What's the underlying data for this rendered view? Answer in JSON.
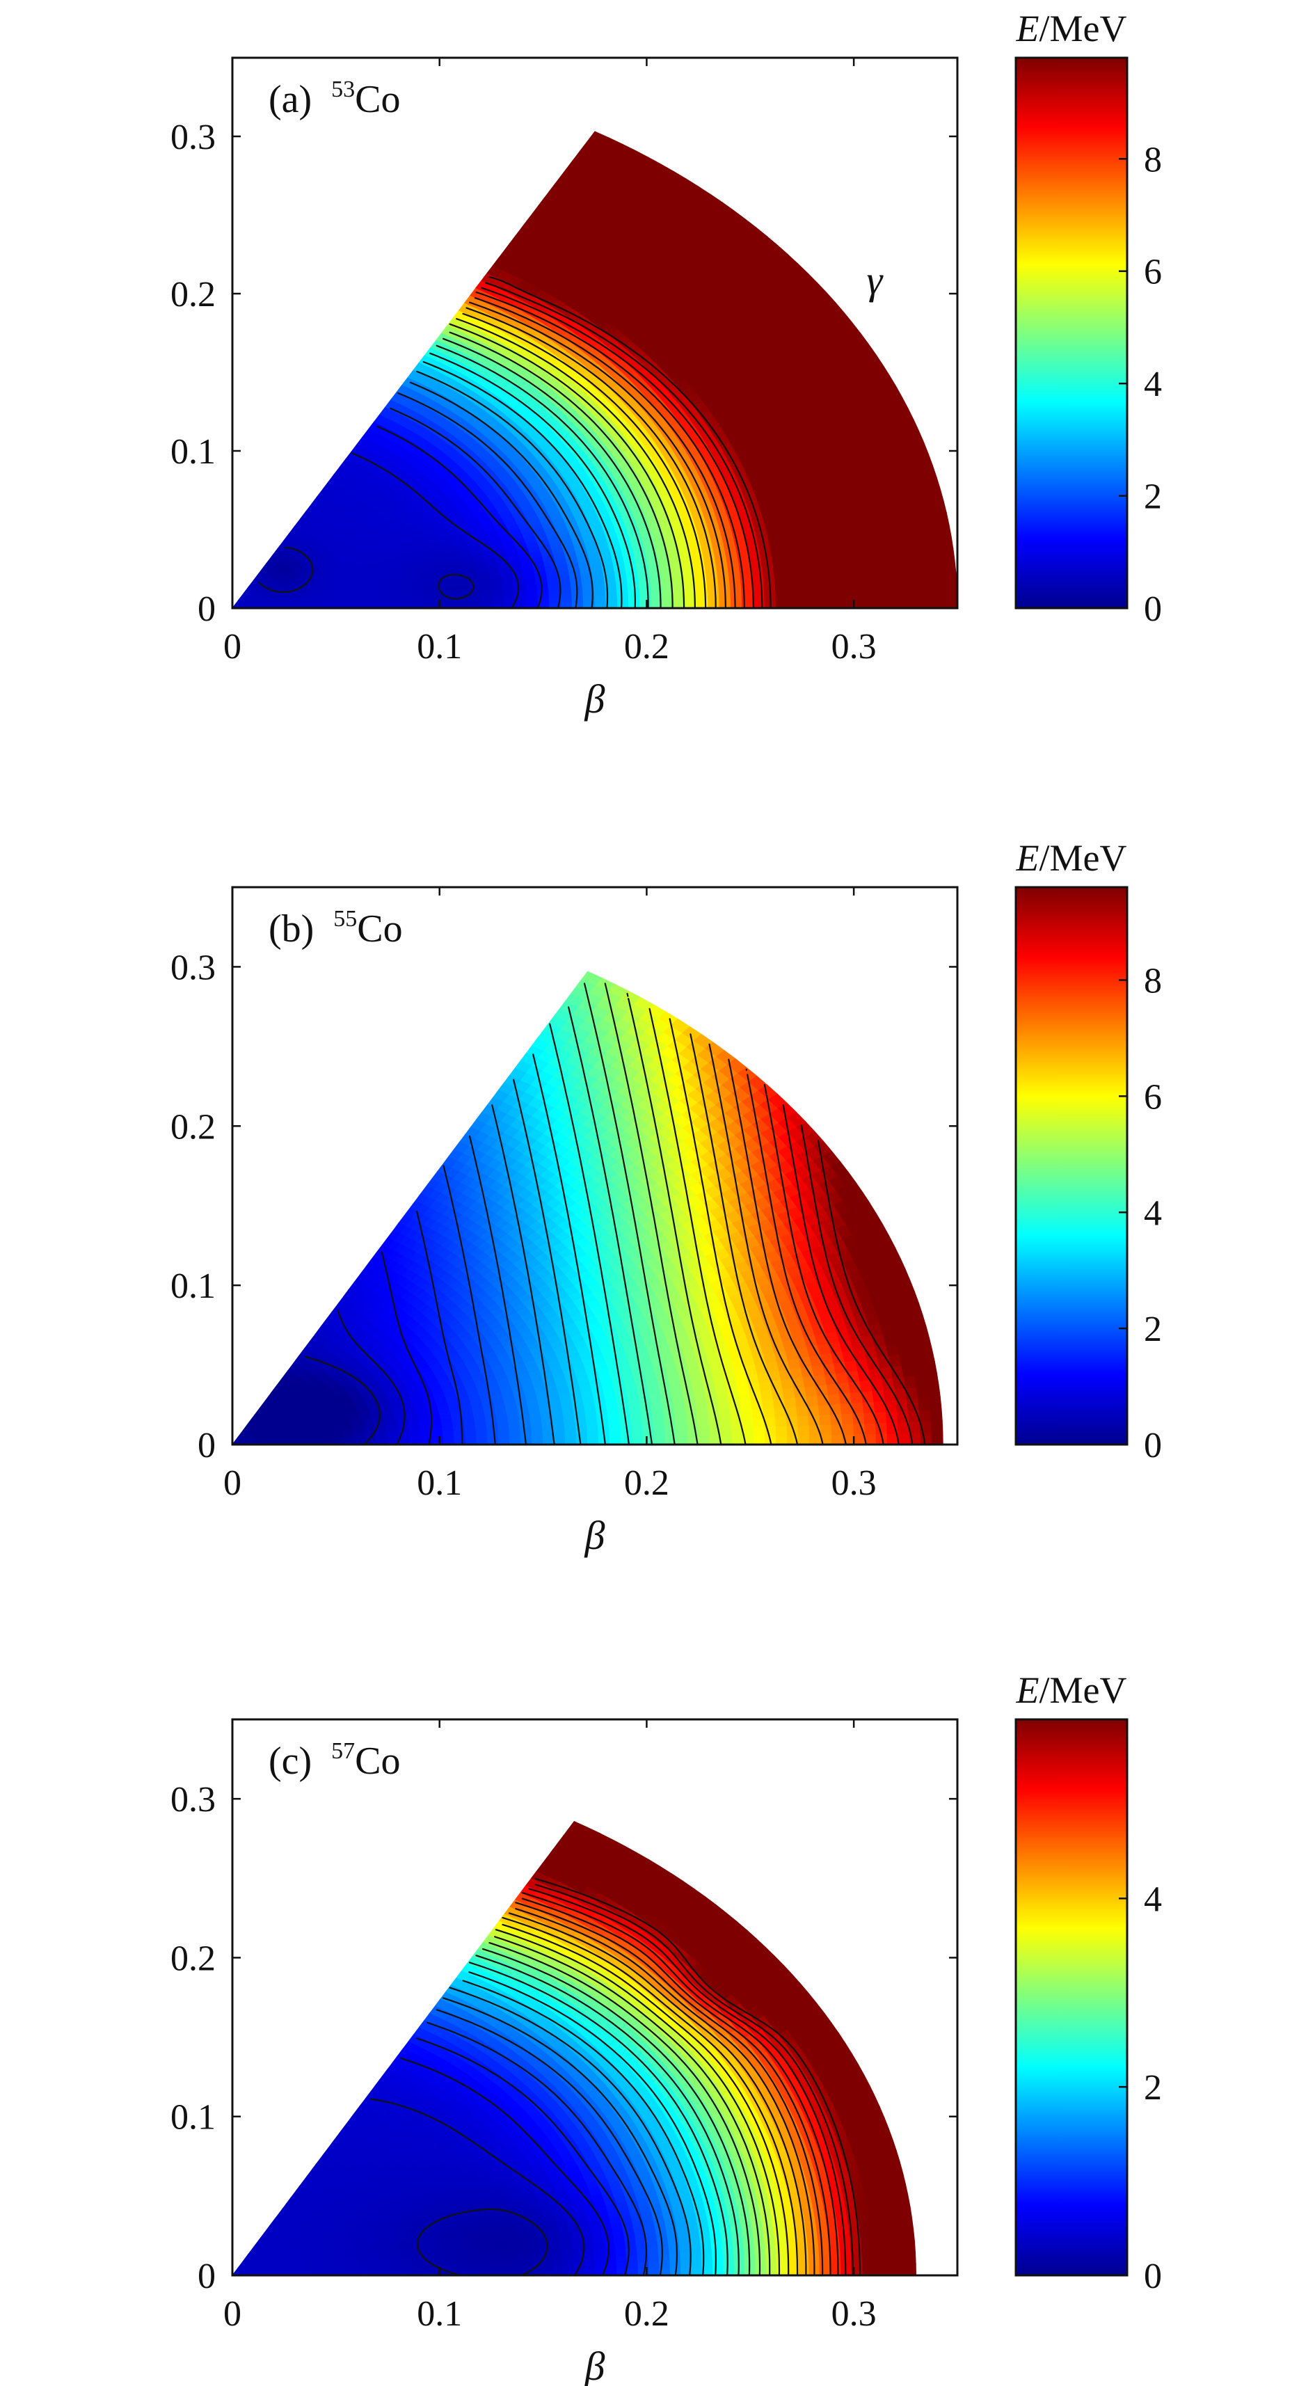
{
  "figure": {
    "shared_x_axis_label": "β",
    "hidden_axis_label": "γ"
  },
  "panels": [
    {
      "panel_label": "(a)",
      "nucleus_mass": "53",
      "nucleus_symbol": "Co",
      "colorbar_title_symbol": "E",
      "colorbar_title_unit": "/MeV",
      "x_ticks": [
        "0",
        "0.1",
        "0.2",
        "0.3"
      ],
      "y_ticks": [
        "0",
        "0.1",
        "0.2",
        "0.3"
      ],
      "colorbar_ticks": [
        "0",
        "2",
        "4",
        "6",
        "8"
      ],
      "axis_labels": {
        "x": "β",
        "y": "",
        "extra": "γ"
      }
    },
    {
      "panel_label": "(b)",
      "nucleus_mass": "55",
      "nucleus_symbol": "Co",
      "colorbar_title_symbol": "E",
      "colorbar_title_unit": "/MeV",
      "x_ticks": [
        "0",
        "0.1",
        "0.2",
        "0.3"
      ],
      "y_ticks": [
        "0",
        "0.1",
        "0.2",
        "0.3"
      ],
      "colorbar_ticks": [
        "0",
        "2",
        "4",
        "6",
        "8"
      ],
      "axis_labels": {
        "x": "β",
        "y": ""
      }
    },
    {
      "panel_label": "(c)",
      "nucleus_mass": "57",
      "nucleus_symbol": "Co",
      "colorbar_title_symbol": "E",
      "colorbar_title_unit": "/MeV",
      "x_ticks": [
        "0",
        "0.1",
        "0.2",
        "0.3"
      ],
      "y_ticks": [
        "0",
        "0.1",
        "0.2",
        "0.3"
      ],
      "colorbar_ticks": [
        "0",
        "2",
        "4"
      ],
      "axis_labels": {
        "x": "β",
        "y": ""
      }
    }
  ],
  "colormap": {
    "name": "jet",
    "stops": [
      "#00008f",
      "#0000ff",
      "#007fff",
      "#00ffff",
      "#7fff7f",
      "#ffff00",
      "#ff7f00",
      "#ff0000",
      "#7f0000"
    ]
  },
  "chart_data": [
    {
      "type": "heatmap",
      "title": "(a) 53Co",
      "xlabel": "β",
      "ylabel": "",
      "xlim": [
        0,
        0.35
      ],
      "ylim": [
        0,
        0.35
      ],
      "x_ticks": [
        0,
        0.1,
        0.2,
        0.3
      ],
      "y_ticks": [
        0,
        0.1,
        0.2,
        0.3
      ],
      "domain_edge_beta": 0.35,
      "domain_apex": [
        0.167,
        0.289
      ],
      "colorbar": {
        "label": "E/MeV",
        "min": 0,
        "max": 9.8,
        "ticks": [
          0,
          2,
          4,
          6,
          8
        ]
      },
      "contour_lines": 22,
      "grid": false,
      "minima": [
        [
          0.13,
          0.015
        ],
        [
          0.025,
          0.025
        ]
      ],
      "notable_features": [
        {
          "kind": "saddle",
          "x": 0.14,
          "y": 0.222,
          "value": 3.7
        },
        {
          "kind": "maximum",
          "x": 0.17,
          "y": 0.28,
          "value": 9.8
        }
      ]
    },
    {
      "type": "heatmap",
      "title": "(b) 55Co",
      "xlabel": "β",
      "ylabel": "",
      "xlim": [
        0,
        0.35
      ],
      "ylim": [
        0,
        0.35
      ],
      "x_ticks": [
        0,
        0.1,
        0.2,
        0.3
      ],
      "y_ticks": [
        0,
        0.1,
        0.2,
        0.3
      ],
      "domain_edge_beta": 0.343,
      "domain_apex": [
        0.171,
        0.294
      ],
      "colorbar": {
        "label": "E/MeV",
        "min": 0,
        "max": 9.6,
        "ticks": [
          0,
          2,
          4,
          6,
          8
        ]
      },
      "contour_lines": 24,
      "grid": false,
      "minima": [
        [
          0.04,
          0.02
        ]
      ],
      "notable_features": [
        {
          "kind": "maximum",
          "x": 0.27,
          "y": 0.17,
          "value": 9.6
        },
        {
          "kind": "shoulder",
          "x": 0.32,
          "y": 0.004,
          "value": 5.1
        }
      ]
    },
    {
      "type": "heatmap",
      "title": "(c) 57Co",
      "xlabel": "β",
      "ylabel": "",
      "xlim": [
        0,
        0.35
      ],
      "ylim": [
        0,
        0.35
      ],
      "x_ticks": [
        0,
        0.1,
        0.2,
        0.3
      ],
      "y_ticks": [
        0,
        0.1,
        0.2,
        0.3
      ],
      "domain_edge_beta": 0.33,
      "domain_apex": [
        0.165,
        0.286
      ],
      "colorbar": {
        "label": "E/MeV",
        "min": 0,
        "max": 5.9,
        "ticks": [
          0,
          2,
          4
        ]
      },
      "contour_lines": 26,
      "grid": false,
      "minima": [
        [
          0.15,
          0.02
        ]
      ],
      "notable_features": [
        {
          "kind": "local_maximum",
          "x": 0.25,
          "y": 0.19,
          "value": 5.9
        },
        {
          "kind": "maximum",
          "x": 0.175,
          "y": 0.28,
          "value": 5.6
        }
      ]
    }
  ]
}
